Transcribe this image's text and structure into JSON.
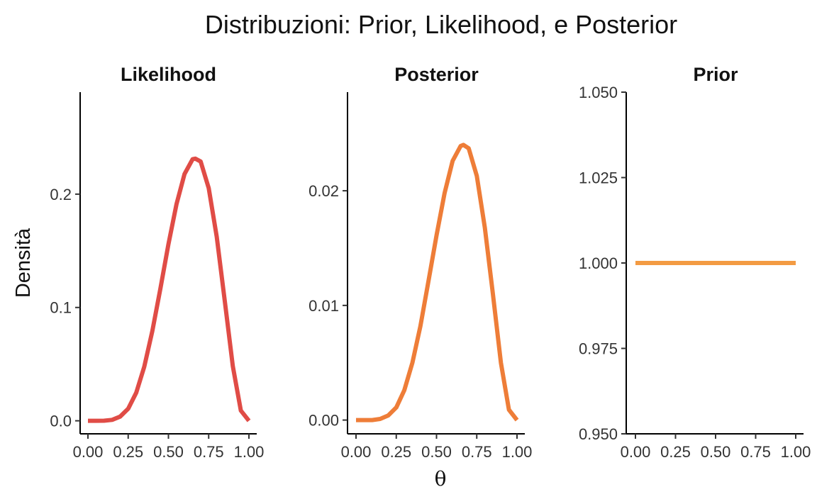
{
  "title": "Distribuzioni: Prior, Likelihood, e Posterior",
  "xlabel": "θ",
  "ylabel": "Densità",
  "chart_data": [
    {
      "type": "line",
      "panel": "Likelihood",
      "color": "#E04C46",
      "x": [
        0,
        0.05,
        0.1,
        0.15,
        0.2,
        0.25,
        0.3,
        0.35,
        0.4,
        0.45,
        0.5,
        0.55,
        0.6,
        0.65,
        0.667,
        0.7,
        0.75,
        0.8,
        0.85,
        0.9,
        0.95,
        1.0
      ],
      "y": [
        0,
        0.0,
        0.0001,
        0.0008,
        0.0037,
        0.0107,
        0.0248,
        0.0477,
        0.0792,
        0.1168,
        0.1558,
        0.1912,
        0.2178,
        0.2308,
        0.2313,
        0.2288,
        0.2053,
        0.1624,
        0.1059,
        0.0481,
        0.009,
        0
      ],
      "xticks": [
        "0.00",
        "0.25",
        "0.50",
        "0.75",
        "1.00"
      ],
      "yticks": [
        "0.0",
        "0.1",
        "0.2"
      ],
      "xlim": [
        0,
        1
      ],
      "ylim": [
        -0.0115,
        0.29
      ]
    },
    {
      "type": "line",
      "panel": "Posterior",
      "color": "#EE7D38",
      "x": [
        0,
        0.05,
        0.1,
        0.15,
        0.2,
        0.25,
        0.3,
        0.35,
        0.4,
        0.45,
        0.5,
        0.55,
        0.6,
        0.65,
        0.667,
        0.7,
        0.75,
        0.8,
        0.85,
        0.9,
        0.95,
        1.0
      ],
      "y": [
        0,
        0.0,
        0.0,
        0.0001,
        0.0004,
        0.0011,
        0.0026,
        0.005,
        0.0082,
        0.0121,
        0.0161,
        0.0198,
        0.0226,
        0.0239,
        0.024,
        0.0237,
        0.0213,
        0.0168,
        0.011,
        0.005,
        0.0009,
        0
      ],
      "xticks": [
        "0.00",
        "0.25",
        "0.50",
        "0.75",
        "1.00"
      ],
      "yticks": [
        "0.00",
        "0.01",
        "0.02"
      ],
      "xlim": [
        0,
        1
      ],
      "ylim": [
        -0.0012,
        0.0286
      ]
    },
    {
      "type": "line",
      "panel": "Prior",
      "color": "#F39B43",
      "x": [
        0,
        1
      ],
      "y": [
        1,
        1
      ],
      "xticks": [
        "0.00",
        "0.25",
        "0.50",
        "0.75",
        "1.00"
      ],
      "yticks": [
        "0.950",
        "0.975",
        "1.000",
        "1.025",
        "1.050"
      ],
      "xlim": [
        0,
        1
      ],
      "ylim": [
        0.95,
        1.05
      ]
    }
  ]
}
